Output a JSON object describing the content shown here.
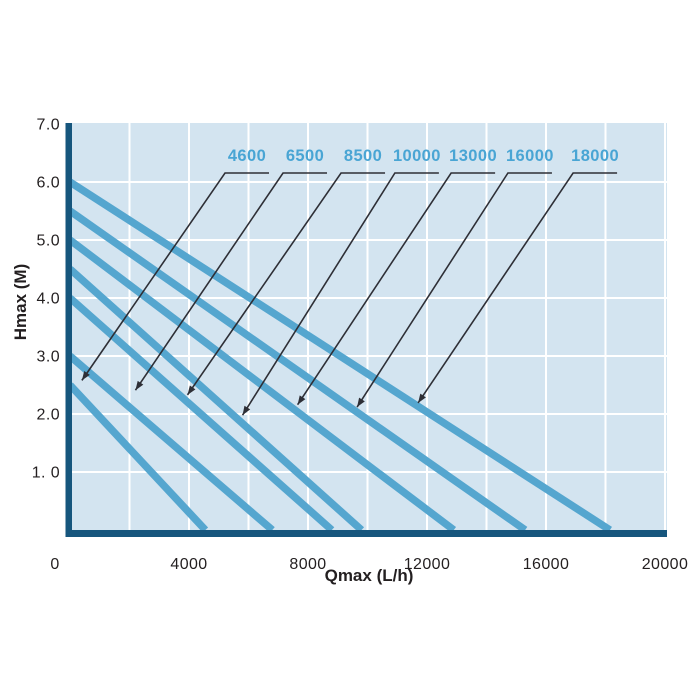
{
  "chart_data": {
    "type": "line",
    "title": "",
    "xlabel": "Qmax (L/h)",
    "ylabel": "Hmax (M)",
    "xlim": [
      0,
      20000
    ],
    "ylim": [
      0,
      7.0
    ],
    "x_ticks": [
      0,
      4000,
      8000,
      12000,
      16000,
      20000
    ],
    "x_tick_labels": [
      "0",
      "4000",
      "8000",
      "12000",
      "16000",
      "20000"
    ],
    "y_ticks": [
      1,
      2,
      3,
      4,
      5,
      6,
      7
    ],
    "y_tick_labels": [
      "1. 0",
      "2.0",
      "3.0",
      "4.0",
      "5.0",
      "6.0",
      "7.0"
    ],
    "x_grid_step": 2000,
    "y_grid_step": 1.0,
    "grid": true,
    "legend": "inline-callouts",
    "series": [
      {
        "name": "4600",
        "points": [
          [
            0,
            2.5
          ],
          [
            4550,
            0
          ]
        ],
        "callout_label_x": 5950,
        "arrow_tip": [
          400,
          2.58
        ]
      },
      {
        "name": "6500",
        "points": [
          [
            0,
            3.0
          ],
          [
            6800,
            0
          ]
        ],
        "callout_label_x": 7900,
        "arrow_tip": [
          2200,
          2.41
        ]
      },
      {
        "name": "8500",
        "points": [
          [
            0,
            4.0
          ],
          [
            8800,
            0
          ]
        ],
        "callout_label_x": 9850,
        "arrow_tip": [
          3950,
          2.33
        ]
      },
      {
        "name": "10000",
        "points": [
          [
            0,
            4.5
          ],
          [
            9800,
            0
          ]
        ],
        "callout_label_x": 11660,
        "arrow_tip": [
          5800,
          1.98
        ]
      },
      {
        "name": "13000",
        "points": [
          [
            0,
            5.0
          ],
          [
            12900,
            0
          ]
        ],
        "callout_label_x": 13550,
        "arrow_tip": [
          7650,
          2.16
        ]
      },
      {
        "name": "16000",
        "points": [
          [
            0,
            5.5
          ],
          [
            15300,
            0
          ]
        ],
        "callout_label_x": 15460,
        "arrow_tip": [
          9650,
          2.12
        ]
      },
      {
        "name": "18000",
        "points": [
          [
            0,
            6.0
          ],
          [
            18150,
            0
          ]
        ],
        "callout_label_x": 17650,
        "arrow_tip": [
          11700,
          2.19
        ]
      }
    ],
    "colors": {
      "plot_bg": "#d3e4f0",
      "grid": "#ffffff",
      "curve": "#55a6cf",
      "axis": "#16567d",
      "series_label": "#49a5d4",
      "callout_line": "#2e2f36",
      "tick_text": "#231f20"
    }
  }
}
